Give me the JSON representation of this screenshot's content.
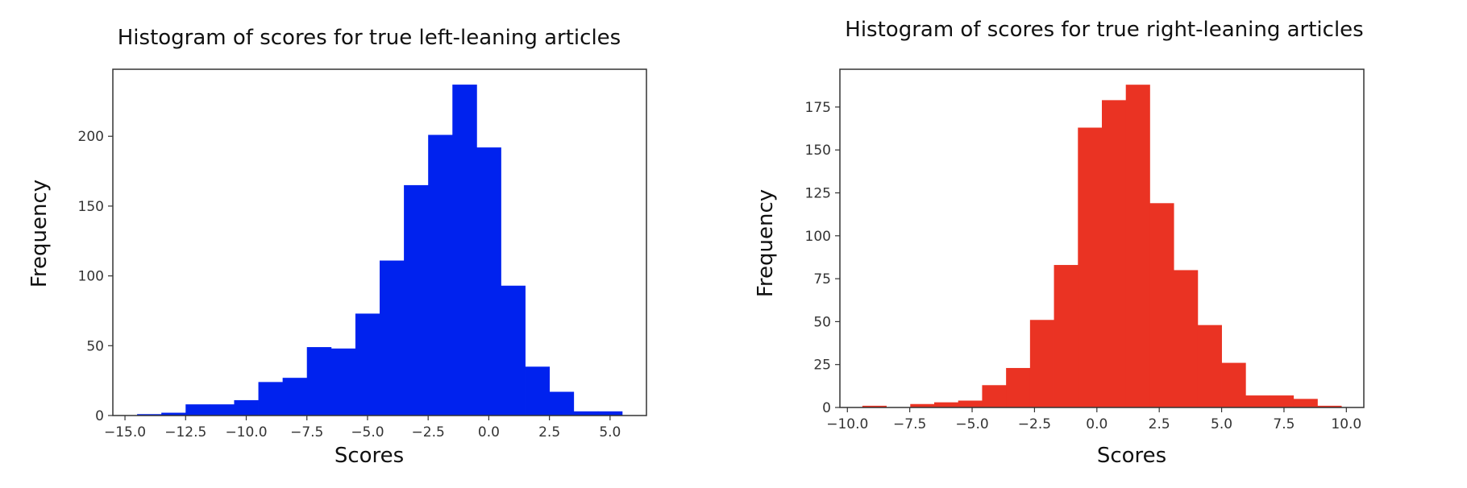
{
  "chart_data": [
    {
      "type": "bar",
      "title": "Histogram of scores for true left-leaning articles",
      "xlabel": "Scores",
      "ylabel": "Frequency",
      "color": "#0022ee",
      "xlim": [
        -15.5,
        6.5
      ],
      "ylim": [
        0,
        248
      ],
      "xticks": [
        -15.0,
        -12.5,
        -10.0,
        -7.5,
        -5.0,
        -2.5,
        0.0,
        2.5,
        5.0
      ],
      "xtick_labels": [
        "−15.0",
        "−12.5",
        "−10.0",
        "−7.5",
        "−5.0",
        "−2.5",
        "0.0",
        "2.5",
        "5.0"
      ],
      "yticks": [
        0,
        50,
        100,
        150,
        200
      ],
      "ytick_labels": [
        "0",
        "50",
        "100",
        "150",
        "200"
      ],
      "bin_edges": [
        -14.5,
        -13.5,
        -12.5,
        -11.5,
        -10.5,
        -9.5,
        -8.5,
        -7.5,
        -6.5,
        -5.5,
        -4.5,
        -3.5,
        -2.5,
        -1.5,
        -0.5,
        0.5,
        1.5,
        2.5,
        3.5,
        4.5,
        5.5
      ],
      "values": [
        1,
        2,
        8,
        8,
        11,
        24,
        27,
        49,
        48,
        73,
        111,
        165,
        201,
        237,
        192,
        93,
        35,
        17,
        3,
        3
      ],
      "grid": false,
      "legend": "none"
    },
    {
      "type": "bar",
      "title": "Histogram of scores for true right-leaning articles",
      "xlabel": "Scores",
      "ylabel": "Frequency",
      "color": "#ea3323",
      "xlim": [
        -10.3,
        10.7
      ],
      "ylim": [
        0,
        197
      ],
      "xticks": [
        -10.0,
        -7.5,
        -5.0,
        -2.5,
        0.0,
        2.5,
        5.0,
        7.5,
        10.0
      ],
      "xtick_labels": [
        "−10.0",
        "−7.5",
        "−5.0",
        "−2.5",
        "0.0",
        "2.5",
        "5.0",
        "7.5",
        "10.0"
      ],
      "yticks": [
        0,
        25,
        50,
        75,
        100,
        125,
        150,
        175
      ],
      "ytick_labels": [
        "0",
        "25",
        "50",
        "75",
        "100",
        "125",
        "150",
        "175"
      ],
      "bin_edges": [
        -9.4,
        -8.44,
        -7.48,
        -6.52,
        -5.56,
        -4.6,
        -3.64,
        -2.68,
        -1.72,
        -0.76,
        0.2,
        1.16,
        2.12,
        3.08,
        4.04,
        5.0,
        5.96,
        6.92,
        7.88,
        8.84,
        9.8
      ],
      "values": [
        1,
        0,
        2,
        3,
        4,
        13,
        23,
        51,
        83,
        163,
        179,
        188,
        119,
        80,
        48,
        26,
        7,
        7,
        5,
        1
      ],
      "grid": false,
      "legend": "none"
    }
  ]
}
